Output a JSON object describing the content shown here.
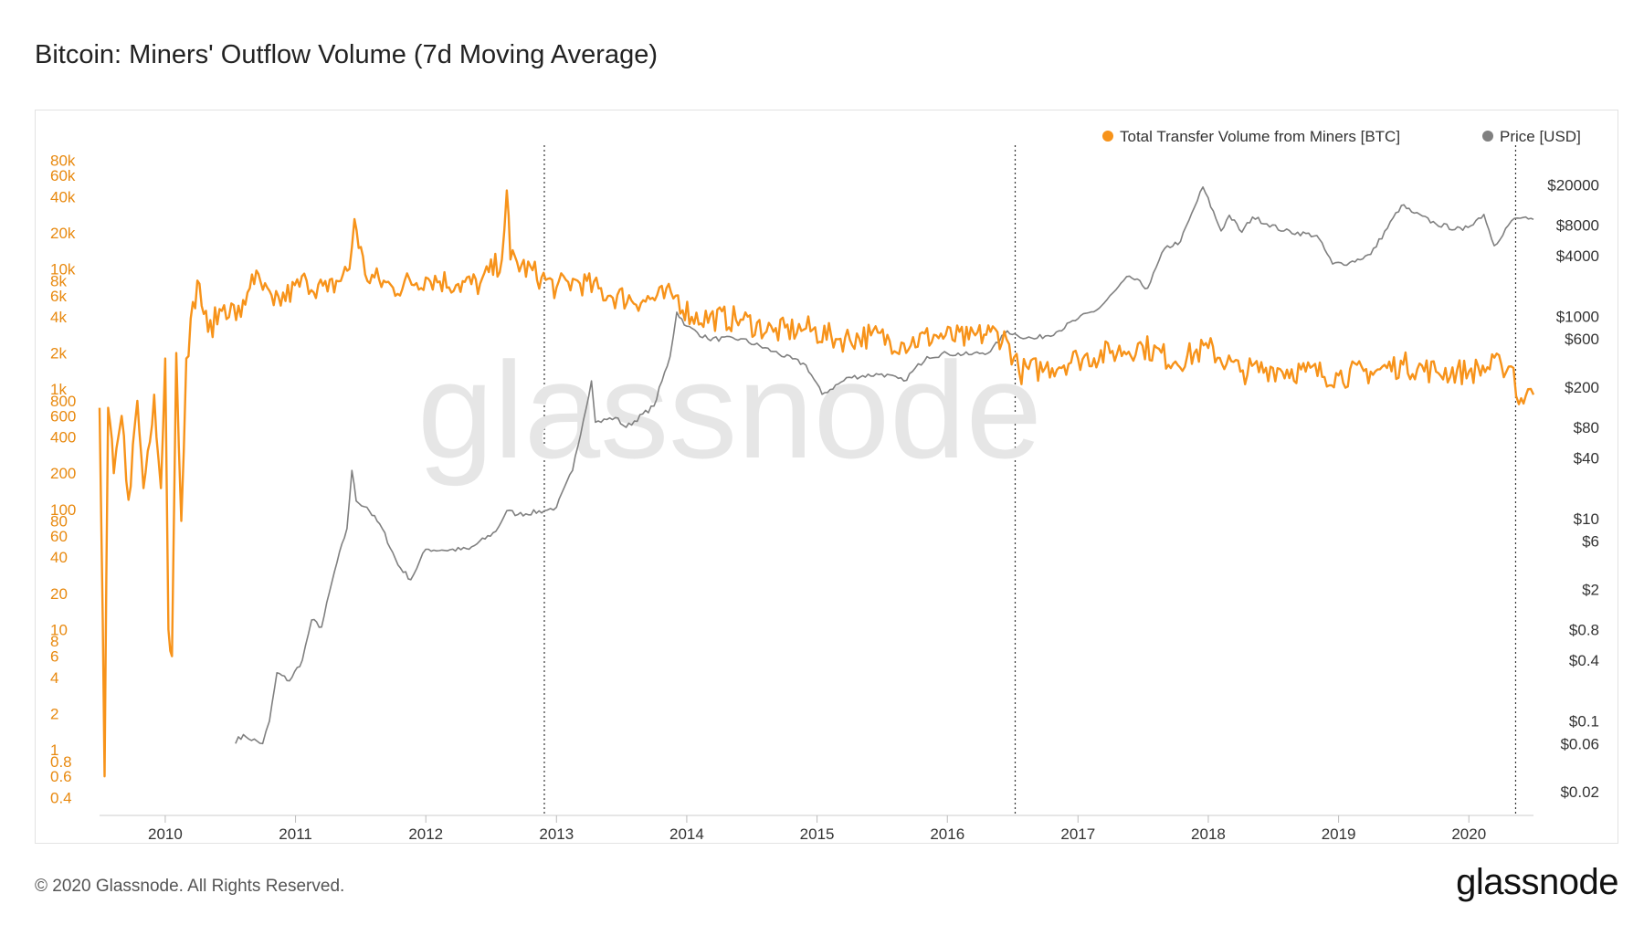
{
  "title": "Bitcoin: Miners' Outflow Volume (7d Moving Average)",
  "footer": {
    "copyright": "© 2020 Glassnode. All Rights Reserved.",
    "logo": "glassnode"
  },
  "watermark": "glassnode",
  "colors": {
    "volume": "#f7931a",
    "price": "#808080",
    "tick_left": "#e8890f",
    "tick_right": "#333333"
  },
  "chart_data": {
    "type": "line",
    "legend": [
      {
        "label": "Total Transfer Volume from Miners [BTC]",
        "color": "#f7931a"
      },
      {
        "label": "Price [USD]",
        "color": "#808080"
      }
    ],
    "legend_position": "top-right",
    "x_axis": {
      "ticks": [
        "2010",
        "2011",
        "2012",
        "2013",
        "2014",
        "2015",
        "2016",
        "2017",
        "2018",
        "2019",
        "2020"
      ],
      "range": [
        "2009-07-01",
        "2020-06-30"
      ]
    },
    "y_left": {
      "scale": "log",
      "range": [
        0.35,
        90000
      ],
      "ticks": [
        "0.4",
        "0.6",
        "0.8",
        "1",
        "2",
        "4",
        "6",
        "8",
        "10",
        "20",
        "40",
        "60",
        "80",
        "100",
        "200",
        "400",
        "600",
        "800",
        "1k",
        "2k",
        "4k",
        "6k",
        "8k",
        "10k",
        "20k",
        "40k",
        "60k",
        "80k"
      ]
    },
    "y_right": {
      "scale": "log",
      "range": [
        0.015,
        40000
      ],
      "ticks": [
        "$0.02",
        "$0.06",
        "$0.1",
        "$0.4",
        "$0.8",
        "$2",
        "$6",
        "$10",
        "$40",
        "$80",
        "$200",
        "$600",
        "$1000",
        "$4000",
        "$8000",
        "$20000"
      ]
    },
    "vertical_markers": [
      "2012-11-28",
      "2016-07-09",
      "2020-05-11"
    ],
    "series": [
      {
        "name": "Total Transfer Volume from Miners [BTC]",
        "axis": "left",
        "points": [
          [
            "2009-07-01",
            700
          ],
          [
            "2009-07-10",
            12
          ],
          [
            "2009-07-15",
            0.6
          ],
          [
            "2009-07-25",
            700
          ],
          [
            "2009-08-10",
            200
          ],
          [
            "2009-09-01",
            600
          ],
          [
            "2009-09-20",
            120
          ],
          [
            "2009-10-15",
            800
          ],
          [
            "2009-11-01",
            150
          ],
          [
            "2009-12-01",
            900
          ],
          [
            "2009-12-20",
            150
          ],
          [
            "2010-01-01",
            1800
          ],
          [
            "2010-01-10",
            10
          ],
          [
            "2010-01-20",
            6
          ],
          [
            "2010-02-01",
            2000
          ],
          [
            "2010-02-15",
            80
          ],
          [
            "2010-03-01",
            1800
          ],
          [
            "2010-04-01",
            8000
          ],
          [
            "2010-05-01",
            3000
          ],
          [
            "2010-06-15",
            5000
          ],
          [
            "2010-08-01",
            4000
          ],
          [
            "2010-09-01",
            9000
          ],
          [
            "2010-11-01",
            5000
          ],
          [
            "2011-02-01",
            8000
          ],
          [
            "2011-04-01",
            6500
          ],
          [
            "2011-06-01",
            10000
          ],
          [
            "2011-06-15",
            26000
          ],
          [
            "2011-07-15",
            9000
          ],
          [
            "2011-10-01",
            7000
          ],
          [
            "2012-01-01",
            8500
          ],
          [
            "2012-04-01",
            7500
          ],
          [
            "2012-06-01",
            7500
          ],
          [
            "2012-08-01",
            12000
          ],
          [
            "2012-08-15",
            45000
          ],
          [
            "2012-08-25",
            12000
          ],
          [
            "2012-11-20",
            8500
          ],
          [
            "2013-01-01",
            7000
          ],
          [
            "2013-03-01",
            8000
          ],
          [
            "2013-06-01",
            6000
          ],
          [
            "2013-09-01",
            5500
          ],
          [
            "2013-12-01",
            6000
          ],
          [
            "2014-01-15",
            4000
          ],
          [
            "2014-06-01",
            3800
          ],
          [
            "2014-09-01",
            3000
          ],
          [
            "2014-12-01",
            3200
          ],
          [
            "2015-03-01",
            2600
          ],
          [
            "2015-06-01",
            2800
          ],
          [
            "2015-09-01",
            2400
          ],
          [
            "2015-12-01",
            2800
          ],
          [
            "2016-03-01",
            2600
          ],
          [
            "2016-05-01",
            3000
          ],
          [
            "2016-06-15",
            2600
          ],
          [
            "2016-07-20",
            1400
          ],
          [
            "2016-10-01",
            1500
          ],
          [
            "2017-01-01",
            1800
          ],
          [
            "2017-04-01",
            2000
          ],
          [
            "2017-07-01",
            2300
          ],
          [
            "2017-10-01",
            1700
          ],
          [
            "2018-01-01",
            2200
          ],
          [
            "2018-04-01",
            1400
          ],
          [
            "2018-07-01",
            1500
          ],
          [
            "2018-10-01",
            1400
          ],
          [
            "2019-01-01",
            1300
          ],
          [
            "2019-04-01",
            1400
          ],
          [
            "2019-07-01",
            1600
          ],
          [
            "2019-10-01",
            1400
          ],
          [
            "2020-01-01",
            1400
          ],
          [
            "2020-04-01",
            1600
          ],
          [
            "2020-05-05",
            1500
          ],
          [
            "2020-05-20",
            750
          ],
          [
            "2020-06-15",
            1000
          ],
          [
            "2020-06-30",
            900
          ]
        ]
      },
      {
        "name": "Price [USD]",
        "axis": "right",
        "points": [
          [
            "2010-07-17",
            0.06
          ],
          [
            "2010-07-25",
            0.07
          ],
          [
            "2010-08-15",
            0.07
          ],
          [
            "2010-10-01",
            0.06
          ],
          [
            "2010-10-20",
            0.1
          ],
          [
            "2010-11-10",
            0.3
          ],
          [
            "2010-12-15",
            0.25
          ],
          [
            "2011-01-20",
            0.4
          ],
          [
            "2011-02-15",
            1.0
          ],
          [
            "2011-03-15",
            0.85
          ],
          [
            "2011-04-20",
            3.0
          ],
          [
            "2011-05-25",
            8
          ],
          [
            "2011-06-08",
            30
          ],
          [
            "2011-06-20",
            15
          ],
          [
            "2011-07-20",
            13
          ],
          [
            "2011-09-01",
            8
          ],
          [
            "2011-10-15",
            3.5
          ],
          [
            "2011-11-20",
            2.5
          ],
          [
            "2012-01-01",
            5
          ],
          [
            "2012-02-15",
            4.9
          ],
          [
            "2012-05-01",
            5
          ],
          [
            "2012-07-15",
            7.5
          ],
          [
            "2012-08-15",
            12
          ],
          [
            "2012-09-15",
            11
          ],
          [
            "2012-11-28",
            12
          ],
          [
            "2013-01-01",
            13
          ],
          [
            "2013-02-15",
            30
          ],
          [
            "2013-04-09",
            230
          ],
          [
            "2013-04-20",
            90
          ],
          [
            "2013-06-15",
            100
          ],
          [
            "2013-07-15",
            80
          ],
          [
            "2013-10-01",
            130
          ],
          [
            "2013-11-15",
            400
          ],
          [
            "2013-12-04",
            1100
          ],
          [
            "2014-01-01",
            800
          ],
          [
            "2014-03-01",
            600
          ],
          [
            "2014-06-01",
            600
          ],
          [
            "2014-09-01",
            450
          ],
          [
            "2014-12-01",
            330
          ],
          [
            "2015-01-15",
            170
          ],
          [
            "2015-04-01",
            250
          ],
          [
            "2015-07-01",
            270
          ],
          [
            "2015-09-01",
            230
          ],
          [
            "2015-11-05",
            400
          ],
          [
            "2016-01-01",
            430
          ],
          [
            "2016-03-01",
            420
          ],
          [
            "2016-05-01",
            450
          ],
          [
            "2016-06-17",
            720
          ],
          [
            "2016-07-15",
            650
          ],
          [
            "2016-09-01",
            600
          ],
          [
            "2016-11-01",
            700
          ],
          [
            "2017-01-01",
            950
          ],
          [
            "2017-03-01",
            1200
          ],
          [
            "2017-05-25",
            2500
          ],
          [
            "2017-07-15",
            1900
          ],
          [
            "2017-09-01",
            4700
          ],
          [
            "2017-10-15",
            5500
          ],
          [
            "2017-12-17",
            19000
          ],
          [
            "2018-02-06",
            7000
          ],
          [
            "2018-03-01",
            10000
          ],
          [
            "2018-04-05",
            6800
          ],
          [
            "2018-05-05",
            9600
          ],
          [
            "2018-08-01",
            7000
          ],
          [
            "2018-11-01",
            6300
          ],
          [
            "2018-12-15",
            3300
          ],
          [
            "2019-02-01",
            3400
          ],
          [
            "2019-04-01",
            4100
          ],
          [
            "2019-06-26",
            12500
          ],
          [
            "2019-08-01",
            10500
          ],
          [
            "2019-10-01",
            8200
          ],
          [
            "2019-12-15",
            7100
          ],
          [
            "2020-02-12",
            10200
          ],
          [
            "2020-03-12",
            5000
          ],
          [
            "2020-04-29",
            8800
          ],
          [
            "2020-06-01",
            9500
          ],
          [
            "2020-06-30",
            9100
          ]
        ]
      }
    ]
  }
}
